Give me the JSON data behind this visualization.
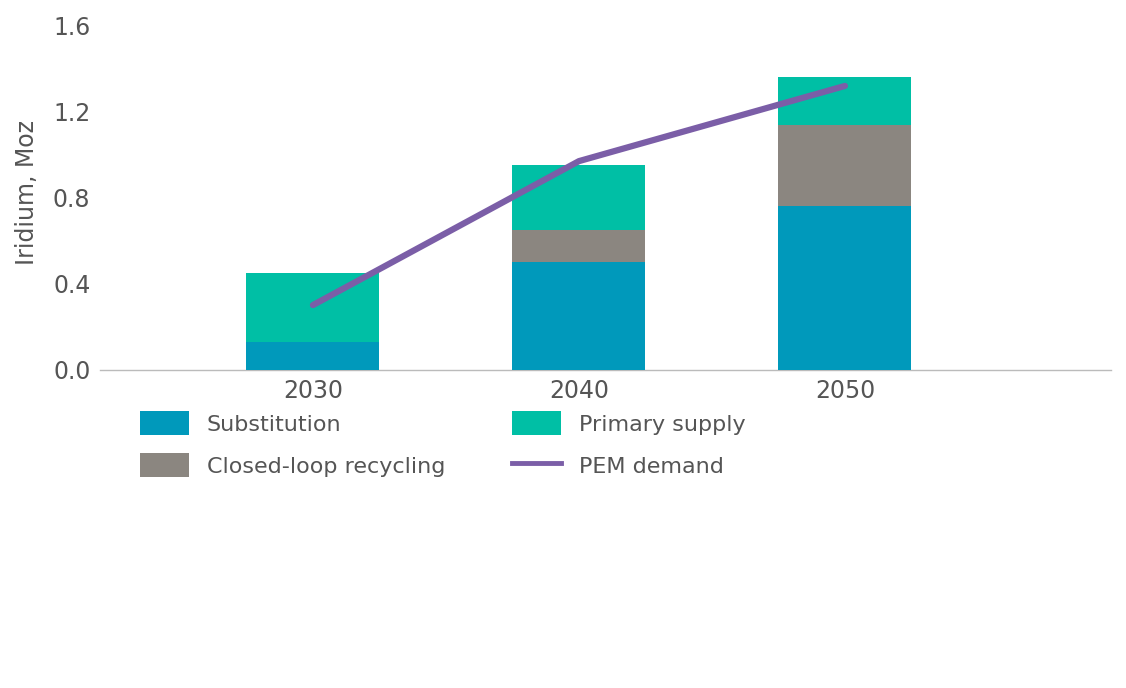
{
  "years": [
    2030,
    2040,
    2050
  ],
  "substitution": [
    0.13,
    0.5,
    0.76
  ],
  "closed_loop_recycling": [
    0.0,
    0.15,
    0.38
  ],
  "primary_supply": [
    0.32,
    0.3,
    0.22
  ],
  "pem_demand": [
    0.3,
    0.97,
    1.32
  ],
  "bar_width": 5.0,
  "substitution_color": "#0099BB",
  "recycling_color": "#8B8680",
  "primary_supply_color": "#00BFA5",
  "pem_demand_color": "#7B5EA7",
  "ylim": [
    0,
    1.65
  ],
  "yticks": [
    0.0,
    0.4,
    0.8,
    1.2,
    1.6
  ],
  "ylabel": "Iridium, Moz",
  "background_color": "#FFFFFF",
  "xlim": [
    2022,
    2060
  ]
}
